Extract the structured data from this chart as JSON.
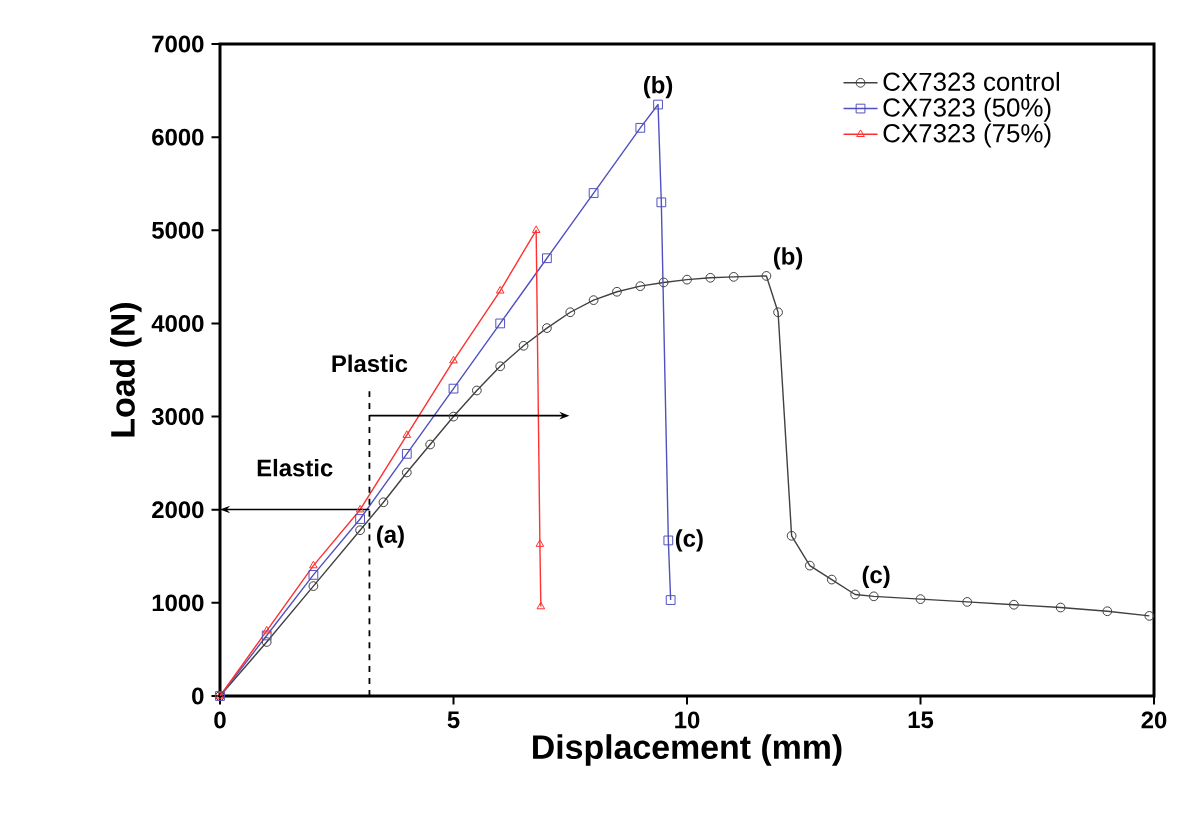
{
  "chart_data": {
    "type": "line",
    "xlabel": "Displacement (mm)",
    "ylabel": "Load (N)",
    "xlim": [
      0,
      20
    ],
    "ylim": [
      0,
      7000
    ],
    "xticks": [
      0,
      5,
      10,
      15,
      20
    ],
    "yticks": [
      0,
      1000,
      2000,
      3000,
      4000,
      5000,
      6000,
      7000
    ],
    "legend": "top right",
    "grid": false,
    "series": [
      {
        "name": "CX7323 control",
        "color": "#404040",
        "marker": "circle",
        "x": [
          0,
          1,
          2,
          3,
          3.5,
          4,
          4.5,
          5,
          5.5,
          6,
          6.5,
          7,
          7.5,
          8,
          8.5,
          9,
          9.5,
          10,
          10.5,
          11,
          11.7,
          11.95,
          12.24,
          12.63,
          13.1,
          13.6,
          14,
          15,
          16,
          17,
          18,
          19,
          19.9
        ],
        "values": [
          0,
          580,
          1180,
          1780,
          2080,
          2400,
          2700,
          3000,
          3280,
          3540,
          3760,
          3950,
          4120,
          4250,
          4340,
          4400,
          4440,
          4470,
          4490,
          4500,
          4510,
          4120,
          1720,
          1400,
          1250,
          1090,
          1070,
          1040,
          1010,
          980,
          950,
          910,
          860
        ]
      },
      {
        "name": "CX7323 (50%)",
        "color": "#5050c0",
        "marker": "square",
        "x": [
          0,
          1,
          2,
          3,
          4,
          5,
          6,
          7,
          8,
          9,
          9.38,
          9.45,
          9.6,
          9.65
        ],
        "values": [
          0,
          650,
          1300,
          1900,
          2600,
          3300,
          4000,
          4700,
          5400,
          6100,
          6350,
          5300,
          1670,
          1030
        ]
      },
      {
        "name": "CX7323 (75%)",
        "color": "#ff3030",
        "marker": "triangle",
        "x": [
          0,
          1,
          2,
          3,
          4,
          5,
          6,
          6.77,
          6.85,
          6.87
        ],
        "values": [
          0,
          700,
          1400,
          2000,
          2800,
          3600,
          4350,
          5000,
          1630,
          960
        ]
      }
    ],
    "ref_lines": [
      {
        "axis": "x",
        "value": 3.2,
        "line_style": "dashed"
      }
    ],
    "annotations": [
      "Elastic",
      "Plastic",
      {
        "text": "(a)",
        "x": 3.2,
        "y": 1900
      },
      {
        "text": "(b)",
        "x": 9.38,
        "y": 6350
      },
      {
        "text": "(b)",
        "x": 11.7,
        "y": 4510
      },
      {
        "text": "(c)",
        "x": 9.6,
        "y": 1670
      },
      {
        "text": "(c)",
        "x": 13.6,
        "y": 1090
      }
    ]
  }
}
